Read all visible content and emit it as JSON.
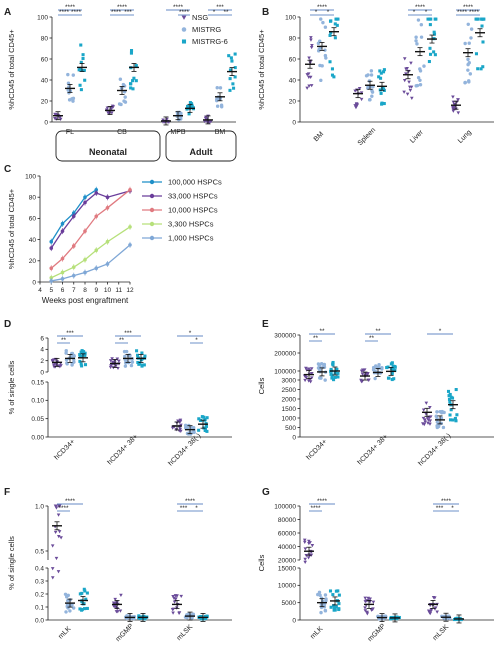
{
  "colors": {
    "NSG": "#6b4c9a",
    "MISTRG": "#93b4dc",
    "MISTRG6": "#1aa6c8",
    "sig": "#3060b0",
    "mean": "#111111"
  },
  "legend_ab": [
    "NSG",
    "MISTRG",
    "MISTRG-6"
  ],
  "chart_data": [
    {
      "id": "A",
      "type": "scatter",
      "ylabel": "%hCD45 of total CD45+",
      "ylim": [
        0,
        100
      ],
      "yticks": [
        0,
        20,
        40,
        60,
        80,
        100
      ],
      "categories": [
        "FL",
        "CB",
        "MPB",
        "BM"
      ],
      "group_labels": [
        "Neonatal",
        "Adult"
      ],
      "series": [
        {
          "name": "NSG",
          "means": [
            6,
            11,
            1,
            2
          ]
        },
        {
          "name": "MISTRG",
          "means": [
            32,
            30,
            6,
            24
          ]
        },
        {
          "name": "MISTRG-6",
          "means": [
            52,
            52,
            13,
            48
          ]
        }
      ],
      "sig_top": [
        "****",
        "****",
        "****",
        "***"
      ],
      "sig_pairs": [
        [
          "****",
          "****"
        ],
        [
          "****",
          "***"
        ],
        [
          "",
          "****"
        ],
        [
          "*",
          "**"
        ]
      ]
    },
    {
      "id": "B",
      "type": "scatter",
      "ylabel": "%hCD45 of total CD45+",
      "ylim": [
        0,
        100
      ],
      "yticks": [
        0,
        20,
        40,
        60,
        80,
        100
      ],
      "categories": [
        "BM",
        "Spleen",
        "Liver",
        "Lung"
      ],
      "series": [
        {
          "name": "NSG",
          "means": [
            55,
            27,
            45,
            16
          ]
        },
        {
          "name": "MISTRG",
          "means": [
            72,
            35,
            67,
            66
          ]
        },
        {
          "name": "MISTRG-6",
          "means": [
            86,
            34,
            79,
            85
          ]
        }
      ],
      "sig_top": [
        "****",
        "",
        "****",
        "****"
      ],
      "sig_pairs": [
        [
          "*",
          "*"
        ],
        [
          "",
          ""
        ],
        [
          "*",
          "*"
        ],
        [
          "****",
          "****"
        ]
      ]
    },
    {
      "id": "C",
      "type": "line",
      "xlabel": "Weeks post engraftment",
      "ylabel": "%hCD45 of total CD45+",
      "xlim": [
        4,
        12
      ],
      "ylim": [
        0,
        100
      ],
      "xticks": [
        4,
        5,
        6,
        7,
        8,
        9,
        10,
        11,
        12
      ],
      "yticks": [
        0,
        20,
        40,
        60,
        80,
        100
      ],
      "series": [
        {
          "name": "100,000 HSPCs",
          "color": "#1e8fc8",
          "x": [
            5,
            6,
            7,
            8,
            9
          ],
          "y": [
            38,
            55,
            65,
            80,
            87
          ]
        },
        {
          "name": "33,000 HSPCs",
          "color": "#6a3d9a",
          "x": [
            5,
            6,
            7,
            8,
            9,
            10,
            12
          ],
          "y": [
            32,
            48,
            62,
            75,
            84,
            80,
            86
          ]
        },
        {
          "name": "10,000 HSPCs",
          "color": "#e07a80",
          "x": [
            5,
            6,
            7,
            8,
            9,
            10,
            12
          ],
          "y": [
            13,
            22,
            34,
            48,
            62,
            70,
            87
          ]
        },
        {
          "name": "3,300 HSPCs",
          "color": "#b6e07a",
          "x": [
            5,
            6,
            7,
            8,
            9,
            10,
            12
          ],
          "y": [
            4,
            9,
            14,
            21,
            30,
            38,
            52
          ]
        },
        {
          "name": "1,000 HSPCs",
          "color": "#7fa7d6",
          "x": [
            5,
            6,
            7,
            8,
            9,
            10,
            12
          ],
          "y": [
            1,
            3,
            6,
            9,
            13,
            17,
            35
          ]
        }
      ]
    },
    {
      "id": "D",
      "type": "scatter",
      "ylabel": "% of single cells",
      "upper": {
        "ylim": [
          0,
          6
        ],
        "yticks": [
          0,
          2,
          4,
          6
        ]
      },
      "lower": {
        "ylim": [
          0,
          0.15
        ],
        "yticks": [
          0.0,
          0.05,
          0.1,
          0.15
        ]
      },
      "categories": [
        "hCD34+",
        "hCD34+ 38+",
        "hCD34+ 38(-)"
      ],
      "series": [
        {
          "name": "NSG",
          "means": [
            1.7,
            1.5,
            0.03
          ]
        },
        {
          "name": "MISTRG",
          "means": [
            2.4,
            2.4,
            0.02
          ]
        },
        {
          "name": "MISTRG-6",
          "means": [
            2.5,
            2.4,
            0.035
          ]
        }
      ],
      "sig_top": [
        "***",
        "***",
        "*"
      ],
      "sig_pairs": [
        [
          "**",
          ""
        ],
        [
          "**",
          ""
        ],
        [
          "",
          "*"
        ]
      ]
    },
    {
      "id": "E",
      "type": "scatter",
      "ylabel": "Cells",
      "ylim": [
        0,
        300000
      ],
      "yticks": [
        0,
        500,
        1000,
        1500,
        2000,
        2500,
        3000,
        100000,
        200000,
        300000
      ],
      "categories": [
        "hCD34+",
        "hCD34+ 38+",
        "hCD34+ 38(-)"
      ],
      "series": [
        {
          "name": "NSG",
          "means": [
            80000,
            72000,
            1300
          ]
        },
        {
          "name": "MISTRG",
          "means": [
            95000,
            92000,
            900
          ]
        },
        {
          "name": "MISTRG-6",
          "means": [
            100000,
            98000,
            1700
          ]
        }
      ],
      "sig_top": [
        "**",
        "**",
        "*"
      ],
      "sig_pairs": [
        [
          "**",
          ""
        ],
        [
          "**",
          ""
        ],
        [
          "",
          ""
        ]
      ]
    },
    {
      "id": "F",
      "type": "scatter",
      "ylabel": "% of single cells",
      "upper": {
        "ylim": [
          0.4,
          1.0
        ],
        "yticks": [
          0.5,
          1.0
        ]
      },
      "lower": {
        "ylim": [
          0,
          0.4
        ],
        "yticks": [
          0.0,
          0.1,
          0.2,
          0.3,
          0.4
        ]
      },
      "categories": [
        "mLK",
        "mGMP",
        "mLSK"
      ],
      "series": [
        {
          "name": "NSG",
          "means": [
            0.78,
            0.12,
            0.12
          ]
        },
        {
          "name": "MISTRG",
          "means": [
            0.13,
            0.02,
            0.03
          ]
        },
        {
          "name": "MISTRG-6",
          "means": [
            0.15,
            0.02,
            0.02
          ]
        }
      ],
      "sig_top": [
        "****",
        "",
        "****"
      ],
      "sig_pairs": [
        [
          "****",
          ""
        ],
        [
          "",
          ""
        ],
        [
          "***",
          "*"
        ]
      ]
    },
    {
      "id": "G",
      "type": "scatter",
      "ylabel": "Cells",
      "upper": {
        "ylim": [
          20000,
          100000
        ],
        "yticks": [
          20000,
          40000,
          60000,
          80000,
          100000
        ]
      },
      "lower": {
        "ylim": [
          0,
          15000
        ],
        "yticks": [
          0,
          5000,
          10000,
          15000
        ]
      },
      "categories": [
        "mLK",
        "mGMP",
        "mLSK"
      ],
      "series": [
        {
          "name": "NSG",
          "means": [
            33000,
            4500,
            4500
          ]
        },
        {
          "name": "MISTRG",
          "means": [
            5000,
            700,
            800
          ]
        },
        {
          "name": "MISTRG-6",
          "means": [
            5500,
            600,
            300
          ]
        }
      ],
      "sig_top": [
        "****",
        "",
        "****"
      ],
      "sig_pairs": [
        [
          "****",
          ""
        ],
        [
          "",
          ""
        ],
        [
          "***",
          "*"
        ]
      ]
    }
  ]
}
